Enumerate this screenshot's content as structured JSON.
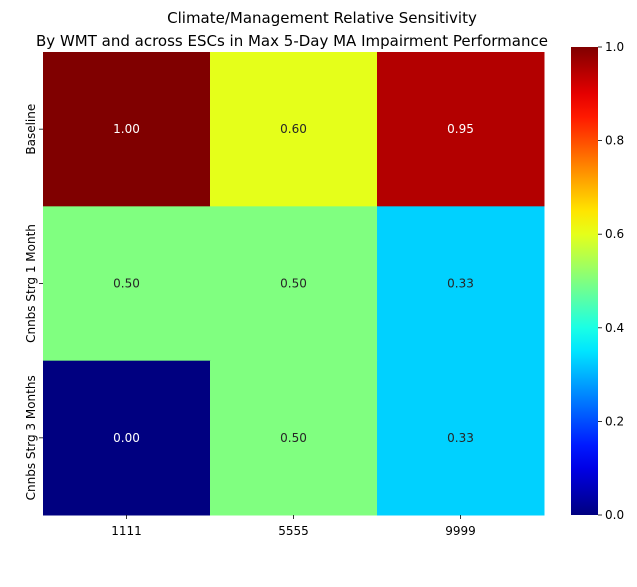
{
  "chart_data": {
    "type": "heatmap",
    "title": "Climate/Management Relative Sensitivity",
    "subtitle": "By WMT and across ESCs in Max 5-Day MA Impairment Performance",
    "xlabel": "",
    "ylabel": "",
    "x_categories": [
      "1111",
      "5555",
      "9999"
    ],
    "y_categories": [
      "Baseline",
      "Cnnbs Strg 1 Month",
      "Cnnbs Strg 3 Months"
    ],
    "values": [
      [
        1.0,
        0.6,
        0.95
      ],
      [
        0.5,
        0.5,
        0.33
      ],
      [
        0.0,
        0.5,
        0.33
      ]
    ],
    "cell_labels": [
      [
        "1.00",
        "0.60",
        "0.95"
      ],
      [
        "0.50",
        "0.50",
        "0.33"
      ],
      [
        "0.00",
        "0.50",
        "0.33"
      ]
    ],
    "colormap": "jet",
    "vmin": 0.0,
    "vmax": 1.0,
    "colorbar_ticks": [
      "0.0",
      "0.2",
      "0.4",
      "0.6",
      "0.8",
      "1.0"
    ],
    "grid": false,
    "legend": "colorbar-right"
  }
}
